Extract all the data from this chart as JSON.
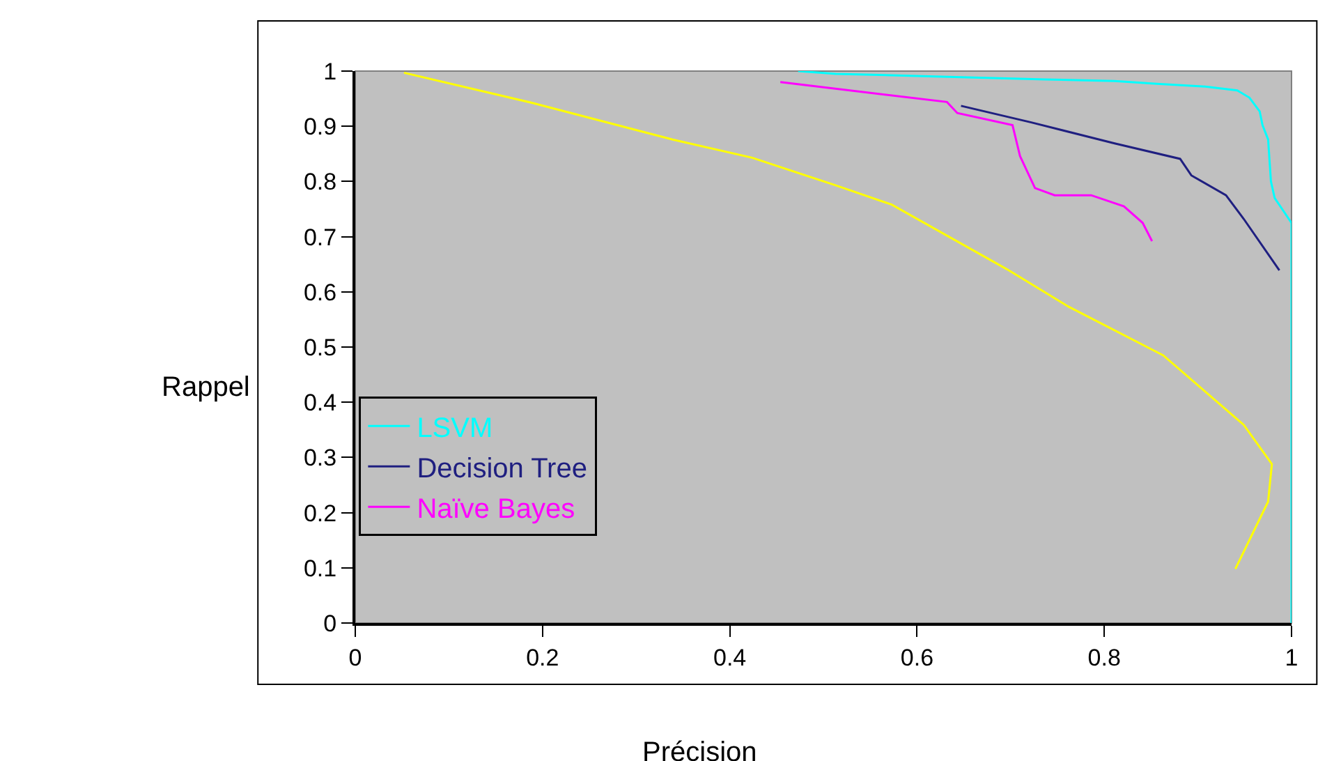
{
  "chart_data": {
    "type": "line",
    "xlabel": "Précision",
    "ylabel": "Rappel",
    "xlim": [
      0,
      1
    ],
    "ylim": [
      0,
      1
    ],
    "xticks": [
      0,
      0.2,
      0.4,
      0.6,
      0.8,
      1
    ],
    "yticks": [
      0,
      0.1,
      0.2,
      0.3,
      0.4,
      0.5,
      0.6,
      0.7,
      0.8,
      0.9,
      1
    ],
    "grid": false,
    "legend": "bottom left",
    "marker": "none",
    "line_style": "solid",
    "series": [
      {
        "name": "LSVM",
        "color": "#00ffff",
        "x": [
          0.473,
          0.513,
          0.626,
          0.737,
          0.811,
          0.856,
          0.908,
          0.942,
          0.955,
          0.966,
          0.969,
          0.975,
          0.978,
          0.982,
          0.99,
          1.0,
          1.0
        ],
        "values": [
          1.0,
          0.995,
          0.99,
          0.985,
          0.982,
          0.977,
          0.972,
          0.965,
          0.952,
          0.927,
          0.902,
          0.876,
          0.8,
          0.77,
          0.75,
          0.725,
          0
        ]
      },
      {
        "name": "Decision Tree",
        "color": "#1f1f80",
        "x": [
          0.647,
          0.722,
          0.811,
          0.881,
          0.893,
          0.93,
          0.949,
          0.987
        ],
        "values": [
          0.937,
          0.907,
          0.869,
          0.841,
          0.811,
          0.775,
          0.732,
          0.639
        ]
      },
      {
        "name": "Naïve Bayes",
        "color": "#ff00ff",
        "x": [
          0.454,
          0.632,
          0.643,
          0.702,
          0.71,
          0.726,
          0.747,
          0.786,
          0.821,
          0.841,
          0.851
        ],
        "values": [
          0.98,
          0.944,
          0.924,
          0.902,
          0.846,
          0.788,
          0.775,
          0.775,
          0.755,
          0.725,
          0.692
        ]
      },
      {
        "color": "#ffff00",
        "x": [
          0.052,
          0.19,
          0.339,
          0.424,
          0.513,
          0.573,
          0.696,
          0.762,
          0.863,
          0.949,
          0.979,
          0.975,
          0.94
        ],
        "values": [
          0.997,
          0.942,
          0.876,
          0.843,
          0.793,
          0.758,
          0.641,
          0.573,
          0.485,
          0.359,
          0.288,
          0.22,
          0.098
        ]
      }
    ]
  }
}
